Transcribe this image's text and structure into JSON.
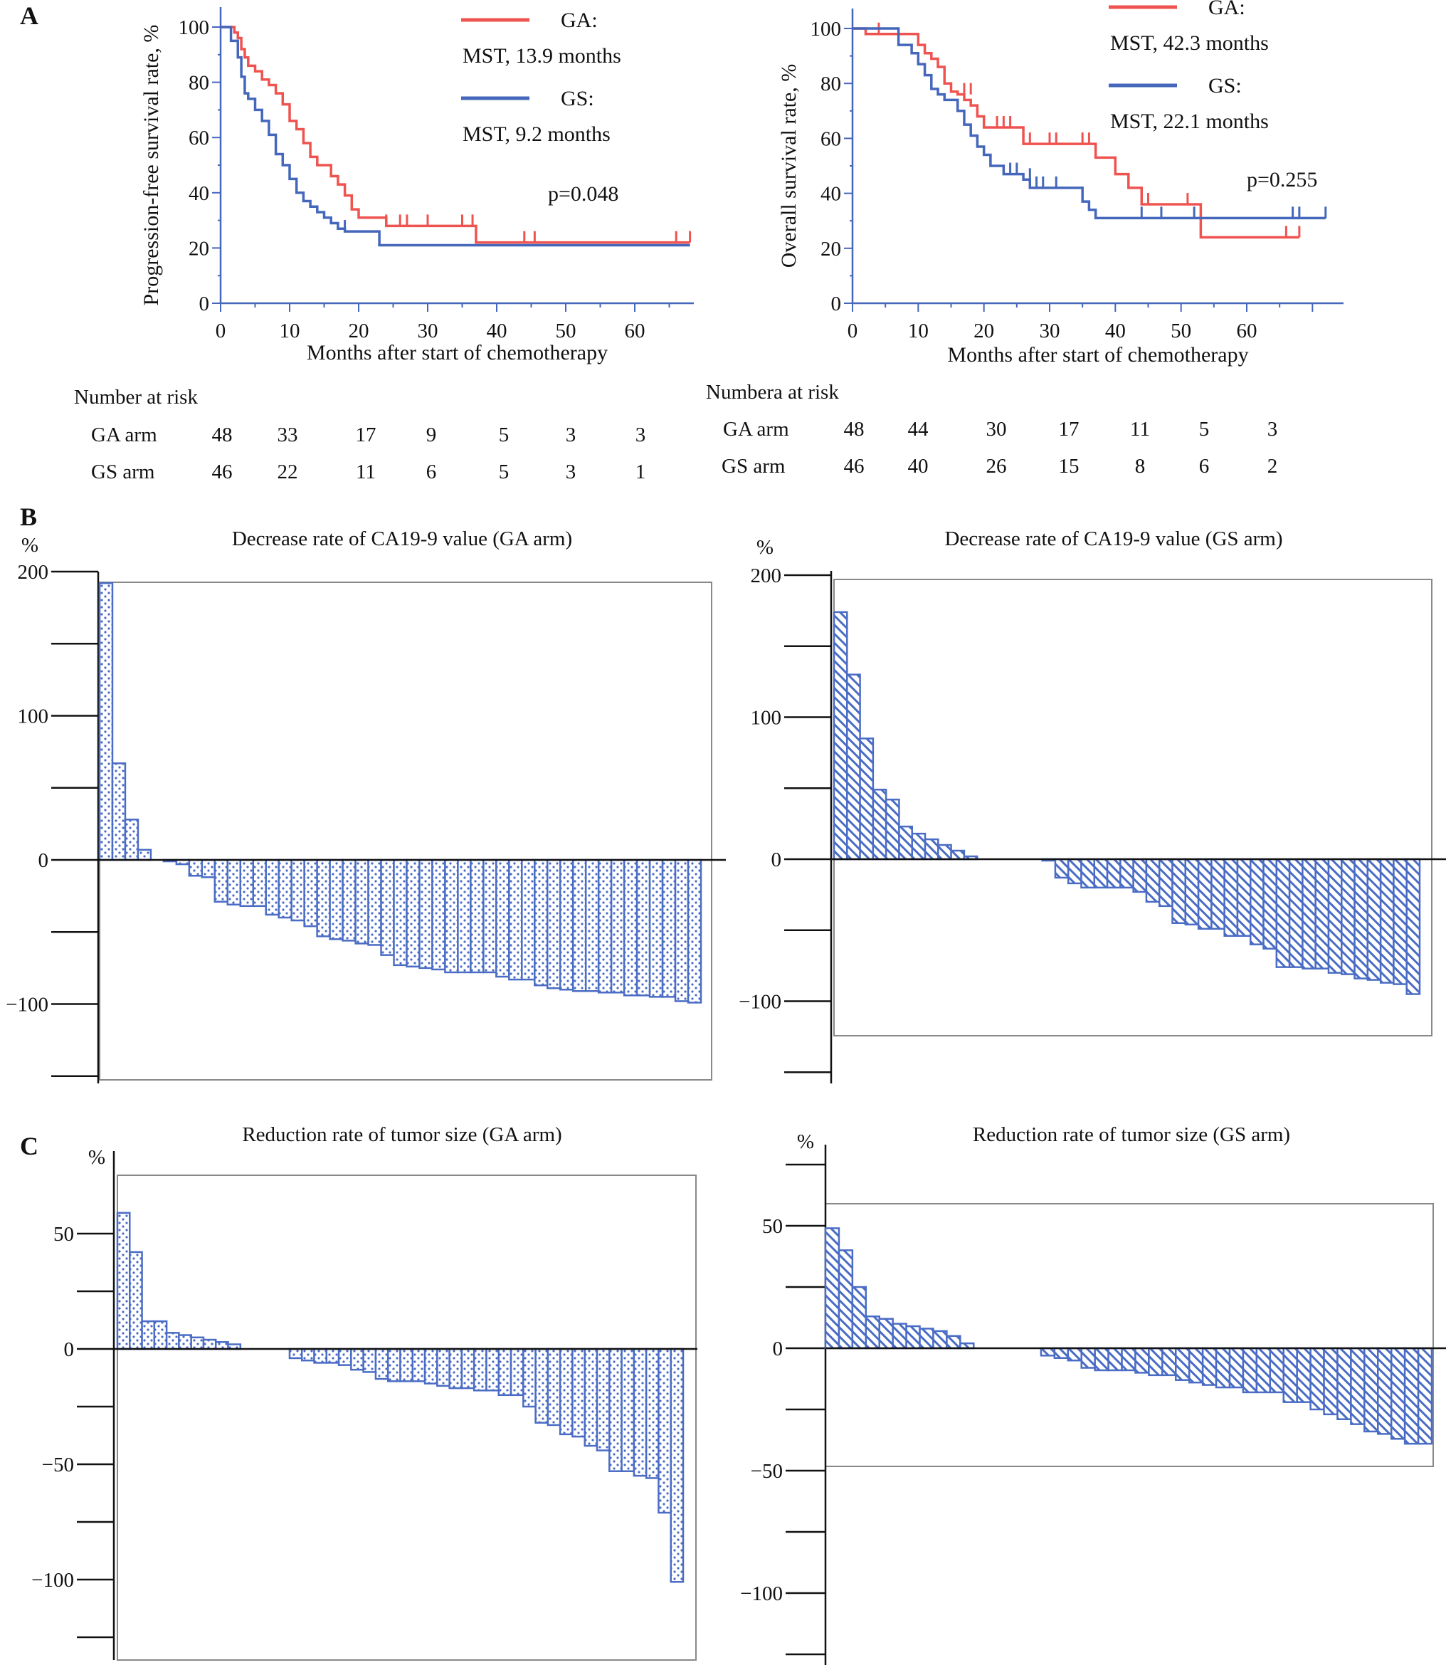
{
  "panels": {
    "A": "A",
    "B": "B",
    "C": "C"
  },
  "colors": {
    "ga": "#ef5350",
    "gs": "#4466bb",
    "bar": "#4a6cc4",
    "axis_blue": "#4466bb",
    "frame": "#888888"
  },
  "chart_data": [
    {
      "id": "pfs",
      "type": "line",
      "title": "",
      "ylabel": "Progression-free survival rate, %",
      "xlabel": "Months after start of chemotherapy",
      "xlim": [
        0,
        68
      ],
      "ylim": [
        0,
        100
      ],
      "xticks": [
        "0",
        "10",
        "20",
        "30",
        "40",
        "50",
        "60"
      ],
      "yticks": [
        "0",
        "20",
        "40",
        "60",
        "80",
        "100"
      ],
      "legend": [
        {
          "name": "GA:",
          "sub": "MST, 13.9 months",
          "color": "#ef5350"
        },
        {
          "name": "GS:",
          "sub": "MST, 9.2 months",
          "color": "#4466bb"
        }
      ],
      "annotation": "p=0.048",
      "series": [
        {
          "name": "GA",
          "color": "#ef5350",
          "x": [
            0,
            2,
            2.5,
            3,
            3.5,
            4,
            5,
            6,
            7,
            8,
            9,
            10,
            11,
            12,
            13,
            14,
            15,
            16,
            17,
            18,
            19,
            20,
            24,
            37,
            68
          ],
          "y": [
            100,
            98,
            96,
            92,
            89,
            86,
            84,
            81,
            79,
            76,
            72,
            66,
            63,
            58,
            53,
            50,
            50,
            46,
            43,
            39,
            34,
            31,
            28,
            22,
            22
          ],
          "censored_x": [
            24,
            26,
            27,
            30,
            35,
            36.5,
            44,
            45.5,
            66,
            68
          ],
          "censored_y": [
            28,
            28,
            28,
            28,
            28,
            28,
            22,
            22,
            22,
            22
          ]
        },
        {
          "name": "GS",
          "color": "#4466bb",
          "x": [
            0,
            1.5,
            2.5,
            3,
            3.5,
            4,
            5,
            6,
            7,
            8,
            9,
            10,
            11,
            12,
            13,
            14,
            15,
            16,
            17,
            18,
            23,
            68
          ],
          "y": [
            100,
            95,
            89,
            82,
            76,
            74,
            70,
            66,
            61,
            54,
            50,
            45,
            40,
            37,
            35,
            33,
            31,
            29,
            27,
            26,
            21,
            21
          ],
          "censored_x": [
            18
          ],
          "censored_y": [
            26
          ]
        }
      ]
    },
    {
      "id": "os",
      "type": "line",
      "title": "",
      "ylabel": "Overall survival rate, %",
      "xlabel": "Months after start of chemotherapy",
      "xlim": [
        0,
        72
      ],
      "ylim": [
        0,
        100
      ],
      "xticks": [
        "0",
        "10",
        "20",
        "30",
        "40",
        "50",
        "60"
      ],
      "yticks": [
        "0",
        "20",
        "40",
        "60",
        "80",
        "100"
      ],
      "legend": [
        {
          "name": "GA:",
          "sub": "MST, 42.3 months",
          "color": "#ef5350"
        },
        {
          "name": "GS:",
          "sub": "MST, 22.1 months",
          "color": "#4466bb"
        }
      ],
      "annotation": "p=0.255",
      "series": [
        {
          "name": "GA",
          "color": "#ef5350",
          "x": [
            0,
            2,
            9,
            10,
            11,
            12,
            13,
            14,
            15,
            16,
            17,
            18,
            19,
            20,
            26,
            37,
            40,
            42,
            44,
            53,
            68
          ],
          "y": [
            100,
            98,
            98,
            94,
            91,
            89,
            86,
            80,
            77,
            76,
            74,
            72,
            68,
            64,
            58,
            53,
            47,
            42,
            36,
            24,
            24
          ],
          "censored_x": [
            4,
            17,
            18,
            22,
            23,
            24,
            27,
            30,
            31,
            35,
            36,
            45,
            51,
            66,
            68
          ],
          "censored_y": [
            98,
            76,
            76,
            64,
            64,
            64,
            58,
            58,
            58,
            58,
            58,
            36,
            36,
            24,
            24
          ]
        },
        {
          "name": "GS",
          "color": "#4466bb",
          "x": [
            0,
            6,
            7,
            9,
            10,
            11,
            12,
            13,
            14,
            16,
            17,
            18,
            19,
            20,
            21,
            23,
            26,
            27,
            35,
            36,
            37,
            72
          ],
          "y": [
            100,
            100,
            94,
            91,
            87,
            83,
            78,
            76,
            74,
            70,
            65,
            61,
            57,
            54,
            50,
            47,
            45,
            42,
            37,
            34,
            31,
            31
          ],
          "censored_x": [
            24,
            25,
            27,
            28,
            29,
            31,
            44,
            47,
            52,
            67,
            68,
            72
          ],
          "censored_y": [
            47,
            47,
            45,
            42,
            42,
            42,
            31,
            31,
            31,
            31,
            31,
            31
          ]
        }
      ]
    },
    {
      "id": "ca199-ga",
      "type": "bar",
      "title": "Decrease rate of CA19-9 value (GA arm)",
      "ylabel": "%",
      "ylim": [
        -150,
        200
      ],
      "yticks": [
        "200",
        "100",
        "0",
        "-100"
      ],
      "values": [
        192,
        67,
        28,
        7,
        0,
        -1,
        -3,
        -11,
        -12,
        -29,
        -31,
        -32,
        -32,
        -38,
        -40,
        -42,
        -46,
        -53,
        -55,
        -56,
        -58,
        -59,
        -66,
        -73,
        -74,
        -75,
        -76,
        -78,
        -78,
        -78,
        -78,
        -81,
        -83,
        -83,
        -87,
        -89,
        -90,
        -91,
        -91,
        -92,
        -92,
        -94,
        -94,
        -95,
        -95,
        -98,
        -99
      ],
      "pattern": "dots"
    },
    {
      "id": "ca199-gs",
      "type": "bar",
      "title": "Decrease rate of CA19-9 value (GS arm)",
      "ylabel": "%",
      "ylim": [
        -150,
        200
      ],
      "yticks": [
        "200",
        "100",
        "0",
        "-100"
      ],
      "values": [
        174,
        130,
        85,
        49,
        42,
        23,
        18,
        14,
        10,
        6,
        2,
        0,
        0,
        0,
        0,
        0,
        -1,
        -13,
        -17,
        -20,
        -20,
        -20,
        -20,
        -23,
        -30,
        -33,
        -45,
        -46,
        -49,
        -49,
        -54,
        -54,
        -60,
        -63,
        -76,
        -76,
        -77,
        -77,
        -80,
        -81,
        -84,
        -85,
        -87,
        -88,
        -95
      ],
      "pattern": "hatch"
    },
    {
      "id": "tumor-ga",
      "type": "bar",
      "title": "Reduction rate of tumor size (GA arm)",
      "ylabel": "%",
      "ylim": [
        -125,
        70
      ],
      "yticks": [
        "50",
        "0",
        "-50",
        "-100"
      ],
      "values": [
        59,
        42,
        12,
        12,
        7,
        6,
        5,
        4,
        3,
        2,
        0,
        0,
        0,
        0,
        -4,
        -5,
        -6,
        -6,
        -7,
        -9,
        -10,
        -13,
        -14,
        -14,
        -14,
        -15,
        -16,
        -17,
        -17,
        -18,
        -18,
        -20,
        -20,
        -25,
        -32,
        -33,
        -37,
        -38,
        -42,
        -44,
        -53,
        -53,
        -55,
        -56,
        -71,
        -101
      ],
      "pattern": "dots"
    },
    {
      "id": "tumor-gs",
      "type": "bar",
      "title": "Reduction rate of tumor size (GS arm)",
      "ylabel": "%",
      "ylim": [
        -130,
        78
      ],
      "yticks": [
        "50",
        "0",
        "-50",
        "-100"
      ],
      "values": [
        49,
        40,
        25,
        13,
        12,
        10,
        9,
        8,
        7,
        5,
        2,
        0,
        0,
        0,
        0,
        0,
        -3,
        -4,
        -5,
        -8,
        -9,
        -9,
        -9,
        -10,
        -11,
        -11,
        -13,
        -14,
        -15,
        -16,
        -16,
        -18,
        -18,
        -18,
        -22,
        -22,
        -25,
        -27,
        -29,
        -31,
        -34,
        -35,
        -37,
        -39,
        -39
      ],
      "pattern": "hatch"
    }
  ],
  "risk_tables": [
    {
      "title": "Number at risk",
      "rows": [
        {
          "label": "GA arm",
          "values": [
            "48",
            "33",
            "17",
            "9",
            "5",
            "3",
            "3"
          ]
        },
        {
          "label": "GS arm",
          "values": [
            "46",
            "22",
            "11",
            "6",
            "5",
            "3",
            "1"
          ]
        }
      ]
    },
    {
      "title": "Numbera at risk",
      "rows": [
        {
          "label": "GA arm",
          "values": [
            "48",
            "44",
            "30",
            "17",
            "11",
            "5",
            "3"
          ]
        },
        {
          "label": "GS arm",
          "values": [
            "46",
            "40",
            "26",
            "15",
            "8",
            "6",
            "2"
          ]
        }
      ]
    }
  ]
}
